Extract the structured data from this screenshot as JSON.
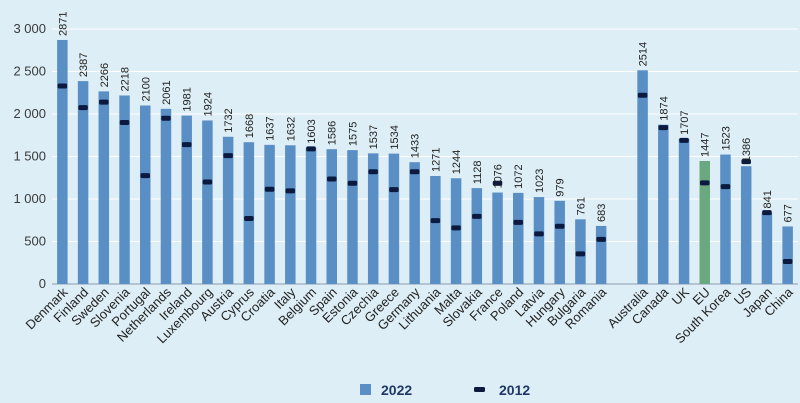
{
  "chart_data": {
    "type": "bar",
    "title": "",
    "xlabel": "",
    "ylabel": "",
    "ylim": [
      0,
      3000
    ],
    "y_ticks": [
      {
        "value": 0,
        "label": "0"
      },
      {
        "value": 500,
        "label": "500"
      },
      {
        "value": 1000,
        "label": "1 000"
      },
      {
        "value": 1500,
        "label": "1 500"
      },
      {
        "value": 2000,
        "label": "2 000"
      },
      {
        "value": 2500,
        "label": "2 500"
      },
      {
        "value": 3000,
        "label": "3 000"
      }
    ],
    "grid": true,
    "legend_position": "bottom",
    "categories": [
      "Denmark",
      "Finland",
      "Sweden",
      "Slovenia",
      "Portugal",
      "Netherlands",
      "Ireland",
      "Luxembourg",
      "Austria",
      "Cyprus",
      "Croatia",
      "Italy",
      "Belgium",
      "Spain",
      "Estonia",
      "Czechia",
      "Greece",
      "Germany",
      "Lithuania",
      "Malta",
      "Slovakia",
      "France",
      "Poland",
      "Latvia",
      "Hungary",
      "Bulgaria",
      "Romania",
      "",
      "Australia",
      "Canada",
      "UK",
      "EU",
      "South Korea",
      "US",
      "Japan",
      "China"
    ],
    "series": [
      {
        "name": "2022",
        "color": "#5a8fc6",
        "highlight_color": "#6aa87f",
        "highlight_category": "EU",
        "values": [
          2871,
          2387,
          2266,
          2218,
          2100,
          2061,
          1981,
          1924,
          1732,
          1668,
          1637,
          1632,
          1603,
          1586,
          1575,
          1537,
          1534,
          1433,
          1271,
          1244,
          1128,
          1076,
          1072,
          1023,
          979,
          761,
          683,
          null,
          2514,
          1874,
          1707,
          1447,
          1523,
          1386,
          841,
          677
        ]
      },
      {
        "name": "2012",
        "color": "#0c1a40",
        "values": [
          2330,
          2075,
          2140,
          1900,
          1275,
          1950,
          1640,
          1200,
          1510,
          770,
          1115,
          1095,
          1590,
          1235,
          1185,
          1320,
          1110,
          1320,
          745,
          660,
          795,
          1185,
          725,
          590,
          680,
          355,
          525,
          null,
          2220,
          1840,
          1690,
          1190,
          1145,
          1440,
          840,
          265
        ]
      }
    ]
  }
}
